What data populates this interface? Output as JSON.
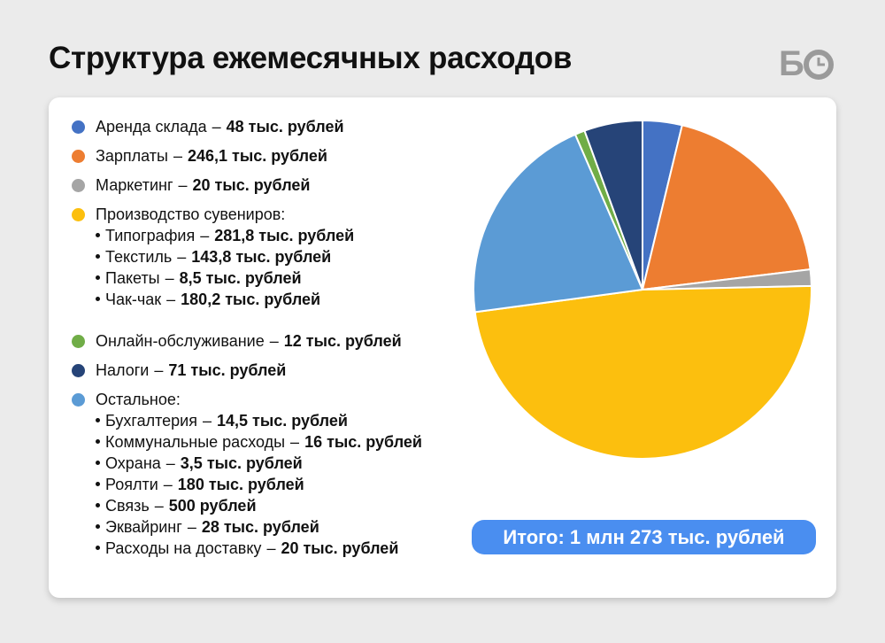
{
  "title": "Структура ежемесячных расходов",
  "logo_letter": "Б",
  "chart_data": {
    "type": "pie",
    "separator": "–",
    "series": [
      {
        "name": "Аренда склада",
        "color": "#4472c4",
        "value": 48,
        "value_label": "48 тыс. рублей"
      },
      {
        "name": "Зарплаты",
        "color": "#ed7d31",
        "value": 246.1,
        "value_label": "246,1 тыс. рублей"
      },
      {
        "name": "Маркетинг",
        "color": "#a5a5a5",
        "value": 20,
        "value_label": "20 тыс. рублей"
      },
      {
        "name": "Производство сувениров:",
        "color": "#fcbf0e",
        "children": [
          {
            "name": "Типография",
            "value": 281.8,
            "value_label": "281,8 тыс. рублей"
          },
          {
            "name": "Текстиль",
            "value": 143.8,
            "value_label": "143,8 тыс. рублей"
          },
          {
            "name": "Пакеты",
            "value": 8.5,
            "value_label": "8,5 тыс. рублей"
          },
          {
            "name": "Чак-чак",
            "value": 180.2,
            "value_label": "180,2 тыс. рублей"
          }
        ]
      },
      {
        "name": "Онлайн-обслуживание",
        "color": "#70ad47",
        "value": 12,
        "value_label": "12 тыс. рублей"
      },
      {
        "name": "Налоги",
        "color": "#264478",
        "value": 71,
        "value_label": "71 тыс. рублей"
      },
      {
        "name": "Остальное:",
        "color": "#5b9bd5",
        "children": [
          {
            "name": "Бухгалтерия",
            "value": 14.5,
            "value_label": "14,5 тыс. рублей"
          },
          {
            "name": "Коммунальные расходы",
            "value": 16,
            "value_label": "16 тыс. рублей"
          },
          {
            "name": "Охрана",
            "value": 3.5,
            "value_label": "3,5 тыс. рублей"
          },
          {
            "name": "Роялти",
            "value": 180,
            "value_label": "180 тыс. рублей"
          },
          {
            "name": "Связь",
            "value": 0.5,
            "value_label": "500 рублей"
          },
          {
            "name": "Эквайринг",
            "value": 28,
            "value_label": "28 тыс. рублей"
          },
          {
            "name": "Расходы на доставку",
            "value": 20,
            "value_label": "20 тыс. рублей"
          }
        ]
      }
    ],
    "total_label": "Итого: 1 млн 273 тыс. рублей"
  }
}
